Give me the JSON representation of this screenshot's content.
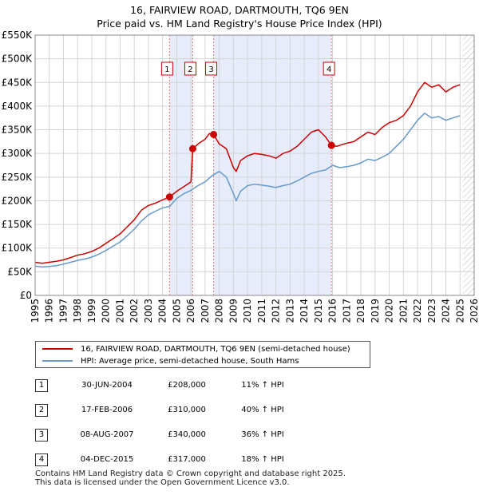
{
  "chart_data": {
    "type": "line",
    "title_line1": "16, FAIRVIEW ROAD, DARTMOUTH, TQ6 9EN",
    "title_line2": "Price paid vs. HM Land Registry's House Price Index (HPI)",
    "xlim": [
      1995,
      2026
    ],
    "ylim": [
      0,
      550000
    ],
    "yticks": [
      0,
      50000,
      100000,
      150000,
      200000,
      250000,
      300000,
      350000,
      400000,
      450000,
      500000,
      550000
    ],
    "ytick_labels": [
      "£0",
      "£50K",
      "£100K",
      "£150K",
      "£200K",
      "£250K",
      "£300K",
      "£350K",
      "£400K",
      "£450K",
      "£500K",
      "£550K"
    ],
    "xticks": [
      1995,
      1996,
      1997,
      1998,
      1999,
      2000,
      2001,
      2002,
      2003,
      2004,
      2005,
      2006,
      2007,
      2008,
      2009,
      2010,
      2011,
      2012,
      2013,
      2014,
      2015,
      2016,
      2017,
      2018,
      2019,
      2020,
      2021,
      2022,
      2023,
      2024,
      2025,
      2026
    ],
    "xtick_labels": [
      "1995",
      "1996",
      "1997",
      "1998",
      "1999",
      "2000",
      "2001",
      "2002",
      "2003",
      "2004",
      "2005",
      "2006",
      "2007",
      "2008",
      "2009",
      "2010",
      "2011",
      "2012",
      "2013",
      "2014",
      "2015",
      "2016",
      "2017",
      "2018",
      "2019",
      "2020",
      "2021",
      "2022",
      "2023",
      "2024",
      "2025",
      "2026"
    ],
    "grid": true,
    "shaded_spans": [
      [
        2004.49,
        2006.13
      ],
      [
        2007.6,
        2015.92
      ]
    ],
    "future_hatch_from": 2025.2,
    "series": [
      {
        "name": "16, FAIRVIEW ROAD, DARTMOUTH, TQ6 9EN (semi-detached house)",
        "color": "#cc0000",
        "x": [
          1995.0,
          1995.5,
          1996.0,
          1996.5,
          1997.0,
          1997.5,
          1998.0,
          1998.5,
          1999.0,
          1999.5,
          2000.0,
          2000.5,
          2001.0,
          2001.5,
          2002.0,
          2002.5,
          2003.0,
          2003.5,
          2004.0,
          2004.49,
          2005.0,
          2005.5,
          2006.0,
          2006.13,
          2006.5,
          2007.0,
          2007.3,
          2007.6,
          2008.0,
          2008.5,
          2009.0,
          2009.2,
          2009.5,
          2010.0,
          2010.5,
          2011.0,
          2011.5,
          2012.0,
          2012.5,
          2013.0,
          2013.5,
          2014.0,
          2014.5,
          2015.0,
          2015.5,
          2015.92,
          2016.3,
          2016.8,
          2017.5,
          2018.0,
          2018.5,
          2019.0,
          2019.5,
          2020.0,
          2020.5,
          2021.0,
          2021.5,
          2022.0,
          2022.5,
          2023.0,
          2023.5,
          2024.0,
          2024.5,
          2025.0
        ],
        "values": [
          70000,
          68000,
          70000,
          72000,
          75000,
          80000,
          85000,
          88000,
          93000,
          100000,
          110000,
          120000,
          130000,
          145000,
          160000,
          180000,
          190000,
          195000,
          202000,
          208000,
          220000,
          230000,
          240000,
          310000,
          320000,
          330000,
          342000,
          340000,
          320000,
          310000,
          270000,
          262000,
          285000,
          295000,
          300000,
          298000,
          295000,
          290000,
          300000,
          305000,
          315000,
          330000,
          345000,
          350000,
          335000,
          317000,
          315000,
          320000,
          325000,
          335000,
          345000,
          340000,
          355000,
          365000,
          370000,
          380000,
          400000,
          430000,
          450000,
          440000,
          445000,
          430000,
          440000,
          445000
        ]
      },
      {
        "name": "HPI: Average price, semi-detached house, South Hams",
        "color": "#6699cc",
        "x": [
          1995.0,
          1995.5,
          1996.0,
          1996.5,
          1997.0,
          1997.5,
          1998.0,
          1998.5,
          1999.0,
          1999.5,
          2000.0,
          2000.5,
          2001.0,
          2001.5,
          2002.0,
          2002.5,
          2003.0,
          2003.5,
          2004.0,
          2004.49,
          2005.0,
          2005.5,
          2006.0,
          2006.5,
          2007.0,
          2007.5,
          2008.0,
          2008.5,
          2009.0,
          2009.2,
          2009.5,
          2010.0,
          2010.5,
          2011.0,
          2011.5,
          2012.0,
          2012.5,
          2013.0,
          2013.5,
          2014.0,
          2014.5,
          2015.0,
          2015.5,
          2016.0,
          2016.5,
          2017.0,
          2017.5,
          2018.0,
          2018.5,
          2019.0,
          2019.5,
          2020.0,
          2020.5,
          2021.0,
          2021.5,
          2022.0,
          2022.5,
          2023.0,
          2023.5,
          2024.0,
          2024.5,
          2025.0
        ],
        "values": [
          62000,
          60000,
          61000,
          63000,
          66000,
          70000,
          74000,
          77000,
          81000,
          87000,
          95000,
          104000,
          113000,
          126000,
          140000,
          157000,
          170000,
          178000,
          185000,
          188000,
          205000,
          215000,
          222000,
          232000,
          240000,
          253000,
          262000,
          250000,
          215000,
          200000,
          220000,
          232000,
          235000,
          233000,
          231000,
          228000,
          232000,
          235000,
          242000,
          250000,
          258000,
          262000,
          265000,
          275000,
          270000,
          272000,
          275000,
          280000,
          288000,
          285000,
          292000,
          300000,
          315000,
          330000,
          350000,
          370000,
          385000,
          375000,
          378000,
          370000,
          375000,
          380000
        ]
      }
    ],
    "markers": [
      {
        "label": "1",
        "x": 2004.49,
        "value": 208000
      },
      {
        "label": "2",
        "x": 2006.13,
        "value": 310000
      },
      {
        "label": "3",
        "x": 2007.6,
        "value": 340000
      },
      {
        "label": "4",
        "x": 2015.92,
        "value": 317000
      }
    ]
  },
  "legend": {
    "property_label": "16, FAIRVIEW ROAD, DARTMOUTH, TQ6 9EN (semi-detached house)",
    "hpi_label": "HPI: Average price, semi-detached house, South Hams",
    "property_color": "#cc0000",
    "hpi_color": "#6699cc"
  },
  "transactions": [
    {
      "num": "1",
      "date": "30-JUN-2004",
      "price": "£208,000",
      "hpi": "11% ↑ HPI"
    },
    {
      "num": "2",
      "date": "17-FEB-2006",
      "price": "£310,000",
      "hpi": "40% ↑ HPI"
    },
    {
      "num": "3",
      "date": "08-AUG-2007",
      "price": "£340,000",
      "hpi": "36% ↑ HPI"
    },
    {
      "num": "4",
      "date": "04-DEC-2015",
      "price": "£317,000",
      "hpi": "18% ↑ HPI"
    }
  ],
  "footer": {
    "line1": "Contains HM Land Registry data © Crown copyright and database right 2025.",
    "line2": "This data is licensed under the Open Government Licence v3.0."
  }
}
